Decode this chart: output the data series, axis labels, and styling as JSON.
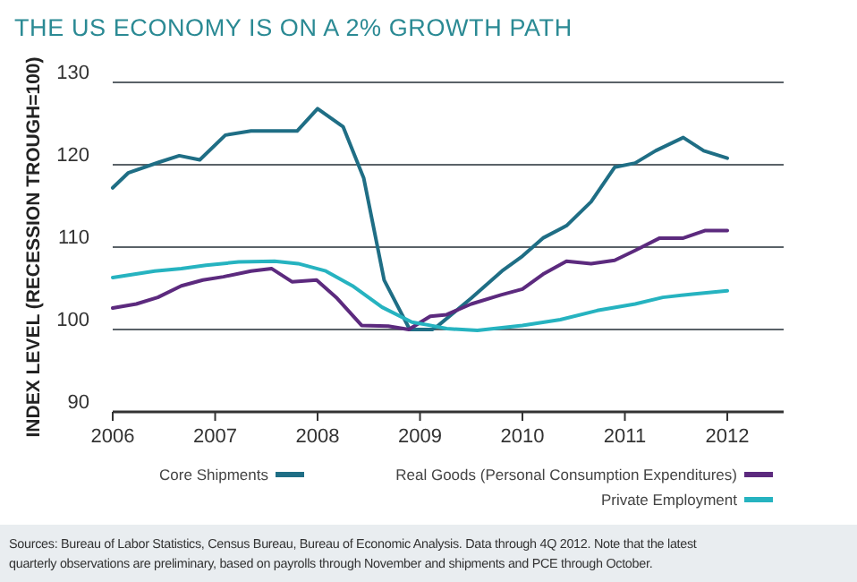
{
  "chart_data": {
    "type": "line",
    "title": "THE US ECONOMY IS ON A 2% GROWTH PATH",
    "ylabel": "INDEX LEVEL (RECESSION TROUGH=100)",
    "xlim": [
      2006,
      2012.55
    ],
    "xticks": [
      2006,
      2007,
      2008,
      2009,
      2010,
      2011,
      2012
    ],
    "ylim": [
      90,
      130
    ],
    "yticks": [
      90,
      100,
      110,
      120,
      130
    ],
    "grid": "y",
    "legend": "bottom",
    "marker": "none",
    "line_style": "solid",
    "series": [
      {
        "name": "Core Shipments",
        "color": "#1f6e85",
        "x": [
          2006,
          2006.15,
          2006.45,
          2006.65,
          2006.85,
          2007.1,
          2007.35,
          2007.8,
          2008,
          2008.25,
          2008.45,
          2008.65,
          2008.9,
          2009.12,
          2009.18,
          2009.5,
          2009.8,
          2010,
          2010.2,
          2010.43,
          2010.67,
          2010.9,
          2011.1,
          2011.3,
          2011.57,
          2011.77,
          2012
        ],
        "values": [
          117.2,
          119,
          120.3,
          121.1,
          120.6,
          123.6,
          124.1,
          124.1,
          126.8,
          124.6,
          118.4,
          106,
          100,
          100,
          100.5,
          103.8,
          107.1,
          108.9,
          111.1,
          112.6,
          115.5,
          119.7,
          120.2,
          121.7,
          123.3,
          121.7,
          120.8
        ]
      },
      {
        "name": "Real Goods (Personal Consumption Expenditures)",
        "color": "#5c2a7e",
        "x": [
          2006,
          2006.23,
          2006.44,
          2006.67,
          2006.88,
          2007.08,
          2007.35,
          2007.55,
          2007.75,
          2007.99,
          2008.19,
          2008.43,
          2008.69,
          2008.89,
          2009.1,
          2009.26,
          2009.5,
          2009.79,
          2010,
          2010.2,
          2010.43,
          2010.67,
          2010.9,
          2011.1,
          2011.34,
          2011.57,
          2011.78,
          2012
        ],
        "values": [
          102.6,
          103.1,
          103.9,
          105.3,
          106,
          106.4,
          107.1,
          107.4,
          105.8,
          106,
          103.8,
          100.5,
          100.4,
          100,
          101.6,
          101.8,
          103.1,
          104.2,
          104.9,
          106.7,
          108.3,
          108,
          108.4,
          109.6,
          111.1,
          111.1,
          112,
          112
        ]
      },
      {
        "name": "Private Employment",
        "color": "#26b3c0",
        "x": [
          2006,
          2006.41,
          2006.67,
          2006.91,
          2007.23,
          2007.58,
          2007.81,
          2008.08,
          2008.34,
          2008.63,
          2008.92,
          2009.1,
          2009.26,
          2009.56,
          2010,
          2010.37,
          2010.73,
          2011.1,
          2011.37,
          2011.66,
          2012
        ],
        "values": [
          106.3,
          107.1,
          107.4,
          107.8,
          108.2,
          108.3,
          108,
          107.1,
          105.3,
          102.7,
          100.9,
          100.5,
          100.1,
          99.9,
          100.5,
          101.2,
          102.3,
          103.1,
          103.9,
          104.3,
          104.7
        ]
      }
    ],
    "annotations": [
      "Sources: Bureau of Labor Statistics, Census Bureau, Bureau of Economic Analysis. Data through 4Q 2012. Note that the latest quarterly observations are preliminary, based on payrolls through November and shipments and PCE through October."
    ]
  }
}
